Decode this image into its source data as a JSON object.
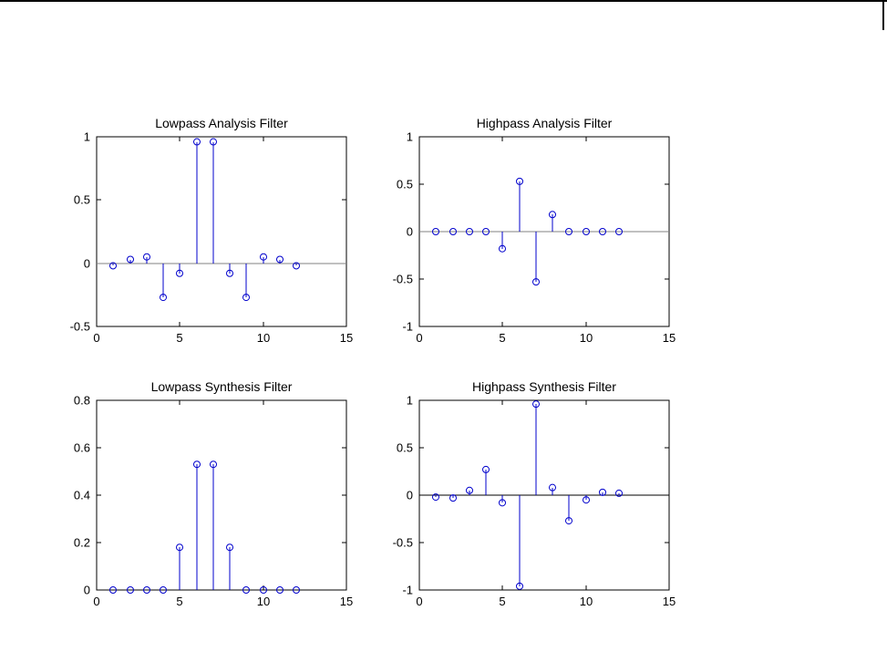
{
  "page": {
    "background": "#ffffff",
    "top_border_color": "#000000",
    "corner_line_color": "#000000"
  },
  "chart_data": [
    {
      "type": "stem",
      "title": "Lowpass Analysis Filter",
      "x": [
        1,
        2,
        3,
        4,
        5,
        6,
        7,
        8,
        9,
        10,
        11,
        12
      ],
      "values": [
        -0.02,
        0.03,
        0.05,
        -0.27,
        -0.08,
        0.96,
        0.96,
        -0.08,
        -0.27,
        0.05,
        0.03,
        -0.02
      ],
      "xlim": [
        0,
        15
      ],
      "ylim": [
        -0.5,
        1
      ],
      "xticks": [
        0,
        5,
        10,
        15
      ],
      "yticks": [
        -0.5,
        0,
        0.5,
        1
      ],
      "baseline": 0,
      "stem_color": "#0000CC",
      "baseline_color": "#808080",
      "axis_color": "#000000",
      "grid": "off",
      "legend": "none"
    },
    {
      "type": "stem",
      "title": "Highpass Analysis Filter",
      "x": [
        1,
        2,
        3,
        4,
        5,
        6,
        7,
        8,
        9,
        10,
        11,
        12
      ],
      "values": [
        0,
        0,
        0,
        0,
        -0.18,
        0.53,
        -0.53,
        0.18,
        0,
        0,
        0,
        0
      ],
      "xlim": [
        0,
        15
      ],
      "ylim": [
        -1,
        1
      ],
      "xticks": [
        0,
        5,
        10,
        15
      ],
      "yticks": [
        -1,
        -0.5,
        0,
        0.5,
        1
      ],
      "baseline": 0,
      "stem_color": "#0000CC",
      "baseline_color": "#808080",
      "axis_color": "#000000",
      "grid": "off",
      "legend": "none"
    },
    {
      "type": "stem",
      "title": "Lowpass Synthesis Filter",
      "x": [
        1,
        2,
        3,
        4,
        5,
        6,
        7,
        8,
        9,
        10,
        11,
        12
      ],
      "values": [
        0,
        0,
        0,
        0,
        0.18,
        0.53,
        0.53,
        0.18,
        0,
        0,
        0,
        0
      ],
      "xlim": [
        0,
        15
      ],
      "ylim": [
        0,
        0.8
      ],
      "xticks": [
        0,
        5,
        10,
        15
      ],
      "yticks": [
        0,
        0.2,
        0.4,
        0.6,
        0.8
      ],
      "baseline": 0,
      "stem_color": "#0000CC",
      "baseline_color": "#000000",
      "axis_color": "#000000",
      "grid": "off",
      "legend": "none"
    },
    {
      "type": "stem",
      "title": "Highpass Synthesis Filter",
      "x": [
        1,
        2,
        3,
        4,
        5,
        6,
        7,
        8,
        9,
        10,
        11,
        12
      ],
      "values": [
        -0.02,
        -0.03,
        0.05,
        0.27,
        -0.08,
        -0.96,
        0.96,
        0.08,
        -0.27,
        -0.05,
        0.03,
        0.02
      ],
      "xlim": [
        0,
        15
      ],
      "ylim": [
        -1,
        1
      ],
      "xticks": [
        0,
        5,
        10,
        15
      ],
      "yticks": [
        -1,
        -0.5,
        0,
        0.5,
        1
      ],
      "baseline": 0,
      "stem_color": "#0000CC",
      "baseline_color": "#000000",
      "axis_color": "#000000",
      "grid": "off",
      "legend": "none"
    }
  ]
}
